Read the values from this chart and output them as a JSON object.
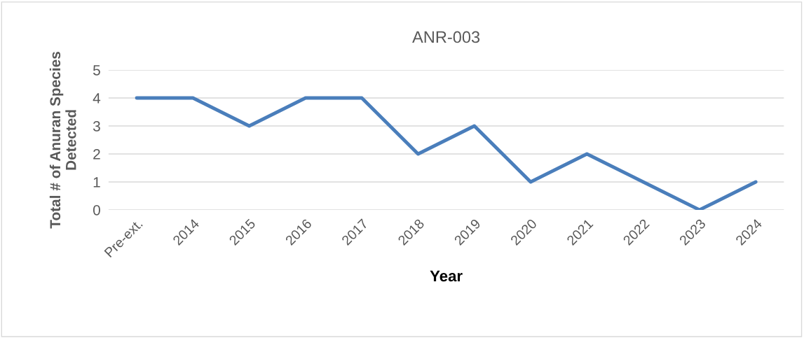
{
  "chart_data": {
    "type": "line",
    "title": "ANR-003",
    "xlabel": "Year",
    "ylabel": "Total # of Anuran Species\nDetected",
    "categories": [
      "Pre-ext.",
      "2014",
      "2015",
      "2016",
      "2017",
      "2018",
      "2019",
      "2020",
      "2021",
      "2022",
      "2023",
      "2024"
    ],
    "series": [
      {
        "color": "#4a7ebb",
        "values": [
          4,
          4,
          3,
          4,
          4,
          2,
          3,
          1,
          2,
          1,
          0,
          1
        ]
      }
    ],
    "ylim": [
      0,
      5
    ],
    "yticks": [
      0,
      1,
      2,
      3,
      4,
      5
    ],
    "grid": "y",
    "marker": "none",
    "line_style": "solid"
  }
}
